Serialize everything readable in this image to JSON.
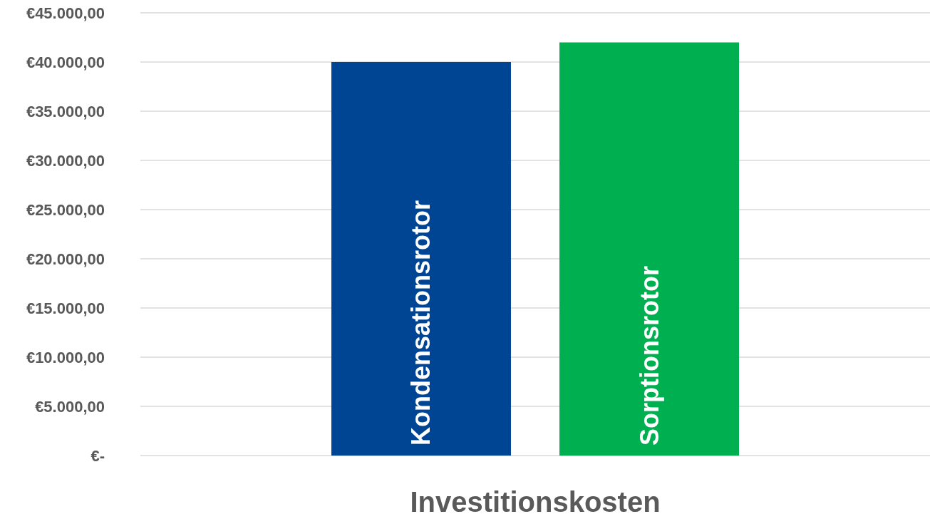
{
  "chart_data": {
    "type": "bar",
    "categories": [
      "Investitionskosten"
    ],
    "series": [
      {
        "name": "Kondensationsrotor",
        "color": "#004494",
        "values": [
          40000
        ]
      },
      {
        "name": "Sorptionsrotor",
        "color": "#00b050",
        "values": [
          42000
        ]
      }
    ],
    "ylim": [
      0,
      45000
    ],
    "yticks": [
      {
        "value": 0,
        "label": "€-"
      },
      {
        "value": 5000,
        "label": "€5.000,00"
      },
      {
        "value": 10000,
        "label": "€10.000,00"
      },
      {
        "value": 15000,
        "label": "€15.000,00"
      },
      {
        "value": 20000,
        "label": "€20.000,00"
      },
      {
        "value": 25000,
        "label": "€25.000,00"
      },
      {
        "value": 30000,
        "label": "€30.000,00"
      },
      {
        "value": 35000,
        "label": "€35.000,00"
      },
      {
        "value": 40000,
        "label": "€40.000,00"
      },
      {
        "value": 45000,
        "label": "€45.000,00"
      }
    ],
    "grid": "y",
    "legend": false
  }
}
